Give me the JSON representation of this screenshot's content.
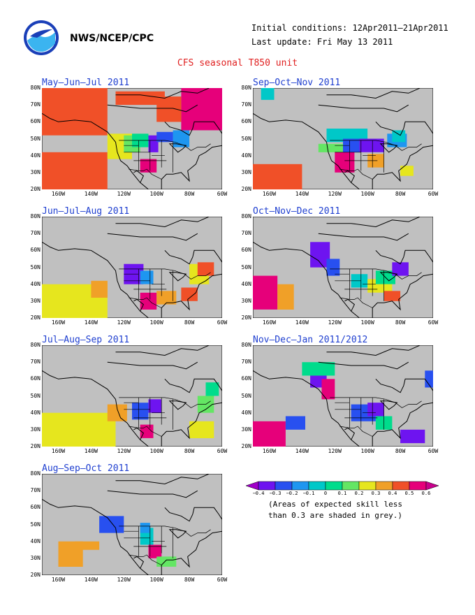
{
  "header": {
    "org": "NWS/NCEP/CPC",
    "initial_conditions": "Initial conditions: 12Apr2011–21Apr2011",
    "last_update": "Last update: Fri May 13 2011",
    "title": "CFS seasonal T850 unit"
  },
  "logo": {
    "text": "NOAA",
    "colors": {
      "outer": "#ffffff",
      "ring": "#1a3fb8",
      "bird": "#3bb4f0"
    }
  },
  "axes": {
    "lat_labels": [
      "80N",
      "70N",
      "60N",
      "50N",
      "40N",
      "30N",
      "20N"
    ],
    "lon_labels": [
      "160W",
      "140W",
      "120W",
      "100W",
      "80W",
      "60W"
    ],
    "lat_values": [
      80,
      70,
      60,
      50,
      40,
      30,
      20
    ],
    "lon_values": [
      -160,
      -140,
      -120,
      -100,
      -80,
      -60
    ]
  },
  "panels": [
    {
      "title": "May–Jun–Jul 2011"
    },
    {
      "title": "Sep–Oct–Nov 2011"
    },
    {
      "title": "Jun–Jul–Aug 2011"
    },
    {
      "title": "Oct–Nov–Dec 2011"
    },
    {
      "title": "Jul–Aug–Sep 2011"
    },
    {
      "title": "Nov–Dec–Jan 2011/2012"
    },
    {
      "title": "Aug–Sep–Oct 2011"
    }
  ],
  "colorbar": {
    "labels": [
      "−0.4",
      "−0.3",
      "−0.2",
      "−0.1",
      "0",
      "0.1",
      "0.2",
      "0.3",
      "0.4",
      "0.5",
      "0.6"
    ],
    "colors": [
      "#a000c8",
      "#6e14f0",
      "#2850f0",
      "#1e96f0",
      "#00c8c8",
      "#00dc8c",
      "#64e664",
      "#e6e61e",
      "#f0a028",
      "#f05028",
      "#e6007a",
      "#c8008c"
    ],
    "note_line1": "(Areas of expected skill less",
    "note_line2": "than 0.3 are shaded in grey.)"
  },
  "palette": {
    "grey": "#c0c0c0",
    "land": "#000000",
    "title_blue": "#1f3fd0",
    "title_red": "#e02020"
  }
}
